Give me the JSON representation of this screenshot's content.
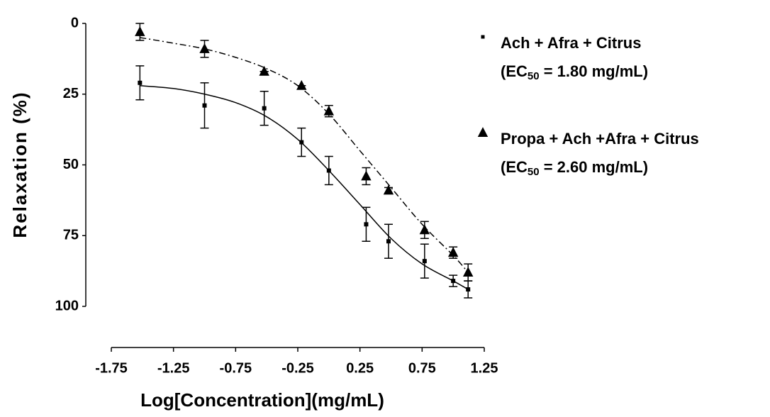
{
  "chart_data": {
    "type": "scatter",
    "x_label": "Log[Concentration](mg/mL)",
    "y_label": "Relaxation (%)",
    "xlim": [
      -1.75,
      1.25
    ],
    "xticks": [
      -1.75,
      -1.25,
      -0.75,
      -0.25,
      0.25,
      0.75,
      1.25
    ],
    "ylim": [
      0,
      100
    ],
    "yticks": [
      0,
      25,
      50,
      75,
      100
    ],
    "y_inverted": true,
    "series": [
      {
        "name": "Ach + Afra + Citrus",
        "marker": "square",
        "line": "solid",
        "color": "#000000",
        "ec50": [
          "(EC",
          "50",
          " = 1.80 mg/mL)"
        ],
        "x": [
          -1.52,
          -1.0,
          -0.52,
          -0.22,
          0.0,
          0.3,
          0.48,
          0.77,
          1.0,
          1.12
        ],
        "values": [
          21,
          29,
          30,
          42,
          52,
          71,
          77,
          84,
          91,
          94
        ],
        "errors": [
          6,
          8,
          6,
          5,
          5,
          6,
          6,
          6,
          2,
          3
        ],
        "fit_x": [
          -1.52,
          -1.25,
          -1.0,
          -0.75,
          -0.5,
          -0.25,
          0.0,
          0.25,
          0.5,
          0.75,
          1.0,
          1.12
        ],
        "fit_values": [
          22,
          23,
          25,
          28,
          33,
          41,
          52,
          64,
          76,
          85,
          91,
          94
        ]
      },
      {
        "name": "Propa + Ach +Afra + Citrus",
        "marker": "triangle",
        "line": "dashdot",
        "color": "#000000",
        "ec50": [
          "(EC",
          "50",
          " = 2.60 mg/mL)"
        ],
        "x": [
          -1.52,
          -1.0,
          -0.52,
          -0.22,
          0.0,
          0.3,
          0.48,
          0.77,
          1.0,
          1.12
        ],
        "values": [
          3,
          9,
          17,
          22,
          31,
          54,
          59,
          73,
          81,
          88
        ],
        "errors": [
          3,
          3,
          0,
          0,
          2,
          3,
          1,
          3,
          2,
          3
        ],
        "fit_x": [
          -1.52,
          -1.25,
          -1.0,
          -0.75,
          -0.5,
          -0.25,
          0.0,
          0.25,
          0.5,
          0.75,
          1.0,
          1.12
        ],
        "fit_values": [
          5,
          7,
          9,
          12,
          16,
          22,
          32,
          45,
          58,
          71,
          82,
          88
        ]
      }
    ]
  }
}
